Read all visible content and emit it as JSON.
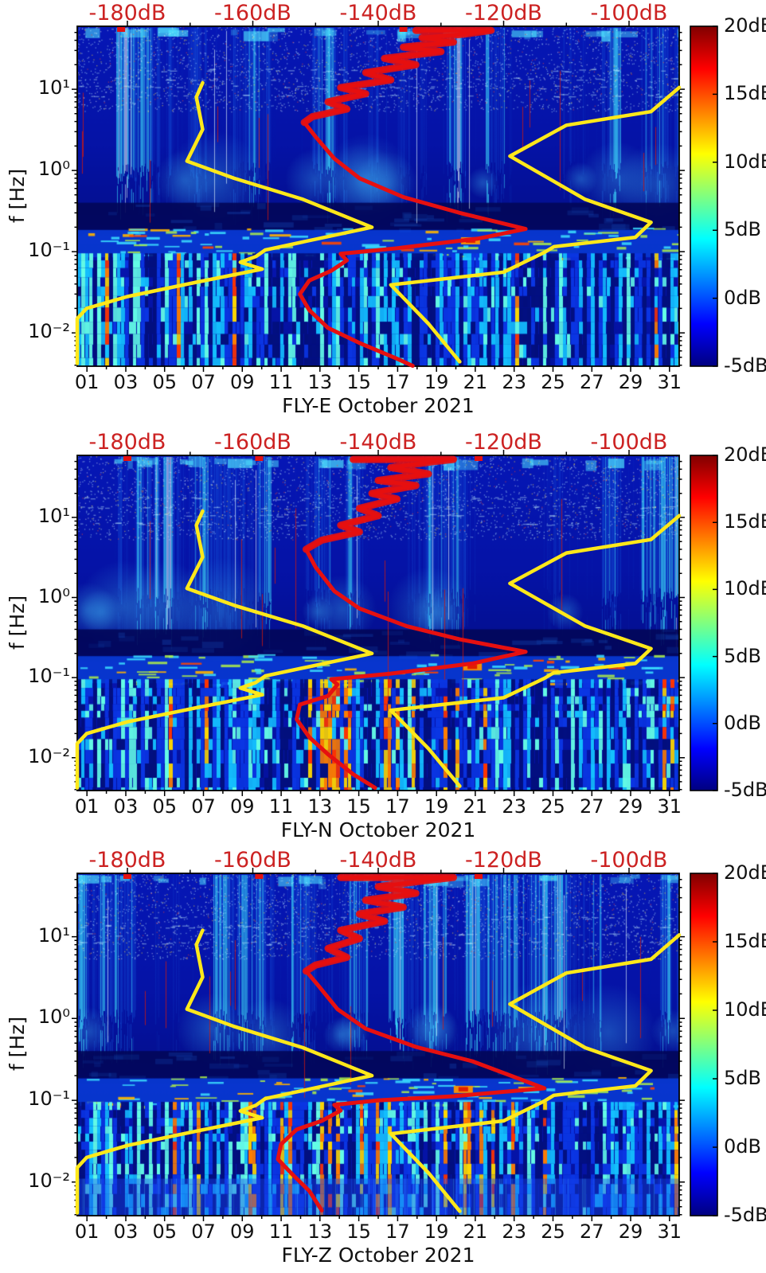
{
  "chart_data": {
    "type": "heatmap",
    "description": "Three seismic PSD spectrogram panels (E, N, Z components, October 2021) with jet colormap, overlaid red median-PSD curve and yellow low/high noise-model curves referenced to the red top dB axis",
    "top_axis": {
      "labels": [
        "-180dB",
        "-160dB",
        "-140dB",
        "-120dB",
        "-100dB"
      ],
      "values": [
        -180,
        -160,
        -140,
        -120,
        -100
      ],
      "range": [
        -188,
        -92
      ],
      "minor_step": 10,
      "color": "#cc2222",
      "unit": "dB"
    },
    "x_axis": {
      "tick_labels": [
        "01",
        "03",
        "05",
        "07",
        "09",
        "11",
        "13",
        "15",
        "17",
        "19",
        "21",
        "23",
        "25",
        "27",
        "29",
        "31"
      ],
      "tick_days": [
        1,
        3,
        5,
        7,
        9,
        11,
        13,
        15,
        17,
        19,
        21,
        23,
        25,
        27,
        29,
        31
      ],
      "days_total": 31
    },
    "y_axis": {
      "label": "f [Hz]",
      "tick_labels": [
        "10¹",
        "10⁰",
        "10⁻¹",
        "10⁻²"
      ],
      "tick_values": [
        10,
        1,
        0.1,
        0.01
      ],
      "scale": "log",
      "log_top": 1.775,
      "decades_visible": 4.186
    },
    "colorbar": {
      "tick_labels": [
        "20dB",
        "15dB",
        "10dB",
        "5dB",
        "0dB",
        "-5dB"
      ],
      "tick_values": [
        20,
        15,
        10,
        5,
        0,
        -5
      ],
      "range": [
        -5,
        20
      ],
      "colormap": "jet"
    },
    "curves": {
      "units": "[dB, Hz]",
      "model_color": "#ffe81a",
      "psd_color": "#e61010",
      "nlnm": [
        [
          -168,
          12
        ],
        [
          -169,
          8
        ],
        [
          -168,
          3.2
        ],
        [
          -170.5,
          1.3
        ],
        [
          -163,
          0.8
        ],
        [
          -152,
          0.44
        ],
        [
          -141,
          0.2
        ],
        [
          -158,
          0.105
        ],
        [
          -159.5,
          0.087
        ],
        [
          -162,
          0.074
        ],
        [
          -158.5,
          0.061
        ],
        [
          -169,
          0.042
        ],
        [
          -180,
          0.028
        ],
        [
          -186.5,
          0.02
        ],
        [
          -189.5,
          0.015
        ],
        [
          -189.3,
          0.0076
        ],
        [
          -188,
          0.0042
        ]
      ],
      "nhnm": [
        [
          -90,
          10.5
        ],
        [
          -96.5,
          5.3
        ],
        [
          -110,
          3.6
        ],
        [
          -119,
          1.5
        ],
        [
          -107,
          0.44
        ],
        [
          -96.5,
          0.23
        ],
        [
          -99,
          0.15
        ],
        [
          -112,
          0.115
        ],
        [
          -113.5,
          0.098
        ],
        [
          -120,
          0.056
        ],
        [
          -138,
          0.039
        ],
        [
          -132,
          0.013
        ],
        [
          -127,
          0.0044
        ]
      ]
    },
    "panels": [
      {
        "id": "FLY-E",
        "xlabel": "FLY-E October 2021",
        "psd_red": [
          [
            -134,
            53
          ],
          [
            -122,
            53
          ],
          [
            -126,
            48
          ],
          [
            -133,
            43
          ],
          [
            -128,
            38
          ],
          [
            -136,
            33
          ],
          [
            -130,
            29
          ],
          [
            -139,
            24
          ],
          [
            -134,
            20
          ],
          [
            -142,
            16
          ],
          [
            -138,
            13
          ],
          [
            -146,
            10.5
          ],
          [
            -142,
            8.8
          ],
          [
            -148,
            7
          ],
          [
            -145,
            5.7
          ],
          [
            -150.5,
            4.6
          ],
          [
            -151.8,
            3.9
          ],
          [
            -150,
            2.6
          ],
          [
            -147,
            1.4
          ],
          [
            -143,
            0.8
          ],
          [
            -136,
            0.47
          ],
          [
            -127,
            0.3
          ],
          [
            -116.5,
            0.19
          ],
          [
            -124,
            0.145
          ],
          [
            -137,
            0.11
          ],
          [
            -146,
            0.094
          ],
          [
            -145,
            0.078
          ],
          [
            -147.5,
            0.058
          ],
          [
            -151,
            0.044
          ],
          [
            -152.5,
            0.03
          ],
          [
            -151,
            0.019
          ],
          [
            -148,
            0.0115
          ],
          [
            -143,
            0.0075
          ],
          [
            -137,
            0.0048
          ],
          [
            -134.5,
            0.0039
          ]
        ],
        "texture": {
          "seed": 7,
          "warm": 0.08,
          "warm_range": [
            0.02,
            0.28
          ],
          "hotspot": 0.652,
          "top_mark_dbs": [
            -181,
            -136
          ],
          "bottom_wash": false
        }
      },
      {
        "id": "FLY-N",
        "xlabel": "FLY-N October 2021",
        "psd_red": [
          [
            -144,
            53
          ],
          [
            -128,
            53
          ],
          [
            -131,
            50
          ],
          [
            -138,
            42
          ],
          [
            -132,
            35
          ],
          [
            -140,
            29
          ],
          [
            -134,
            25
          ],
          [
            -141,
            20
          ],
          [
            -137,
            17
          ],
          [
            -143,
            13
          ],
          [
            -140,
            10.5
          ],
          [
            -146,
            8
          ],
          [
            -143,
            6.6
          ],
          [
            -149,
            5.2
          ],
          [
            -151.5,
            4
          ],
          [
            -150,
            2.4
          ],
          [
            -147,
            1.2
          ],
          [
            -143,
            0.73
          ],
          [
            -135.5,
            0.44
          ],
          [
            -127,
            0.3
          ],
          [
            -116.5,
            0.21
          ],
          [
            -125,
            0.15
          ],
          [
            -138,
            0.112
          ],
          [
            -147.5,
            0.095
          ],
          [
            -146.5,
            0.082
          ],
          [
            -148,
            0.059
          ],
          [
            -152.5,
            0.046
          ],
          [
            -153,
            0.0302
          ],
          [
            -151,
            0.018
          ],
          [
            -148,
            0.011
          ],
          [
            -144,
            0.0062
          ],
          [
            -140.5,
            0.0042
          ]
        ],
        "texture": {
          "seed": 19,
          "warm": 0.27,
          "warm_range": [
            0.36,
            0.72
          ],
          "hotspot": 0.655,
          "top_mark_dbs": [
            -180,
            -159,
            -124
          ],
          "bottom_wash": false
        }
      },
      {
        "id": "FLY-Z",
        "xlabel": "FLY-Z October 2021",
        "psd_red": [
          [
            -146,
            53
          ],
          [
            -128,
            53
          ],
          [
            -132,
            49
          ],
          [
            -140,
            41
          ],
          [
            -134,
            34
          ],
          [
            -142,
            28
          ],
          [
            -136,
            23
          ],
          [
            -143,
            19
          ],
          [
            -139,
            15.5
          ],
          [
            -146,
            12
          ],
          [
            -143,
            9.5
          ],
          [
            -148,
            7.2
          ],
          [
            -145,
            5.6
          ],
          [
            -150,
            4.5
          ],
          [
            -151.5,
            3.8
          ],
          [
            -149.5,
            2.5
          ],
          [
            -146.5,
            1.3
          ],
          [
            -142,
            0.75
          ],
          [
            -134,
            0.45
          ],
          [
            -125,
            0.3
          ],
          [
            -113.5,
            0.14
          ],
          [
            -128,
            0.112
          ],
          [
            -140,
            0.1
          ],
          [
            -147,
            0.088
          ],
          [
            -146,
            0.075
          ],
          [
            -149,
            0.056
          ],
          [
            -153,
            0.044
          ],
          [
            -155.5,
            0.029
          ],
          [
            -156,
            0.019
          ],
          [
            -153.5,
            0.012
          ],
          [
            -151,
            0.0078
          ],
          [
            -149,
            0.0045
          ]
        ],
        "texture": {
          "seed": 31,
          "warm": 0.23,
          "warm_range": [
            0.28,
            0.7
          ],
          "hotspot": 0.64,
          "top_mark_dbs": [
            -180,
            -159,
            -124
          ],
          "bottom_wash": true
        }
      }
    ]
  }
}
